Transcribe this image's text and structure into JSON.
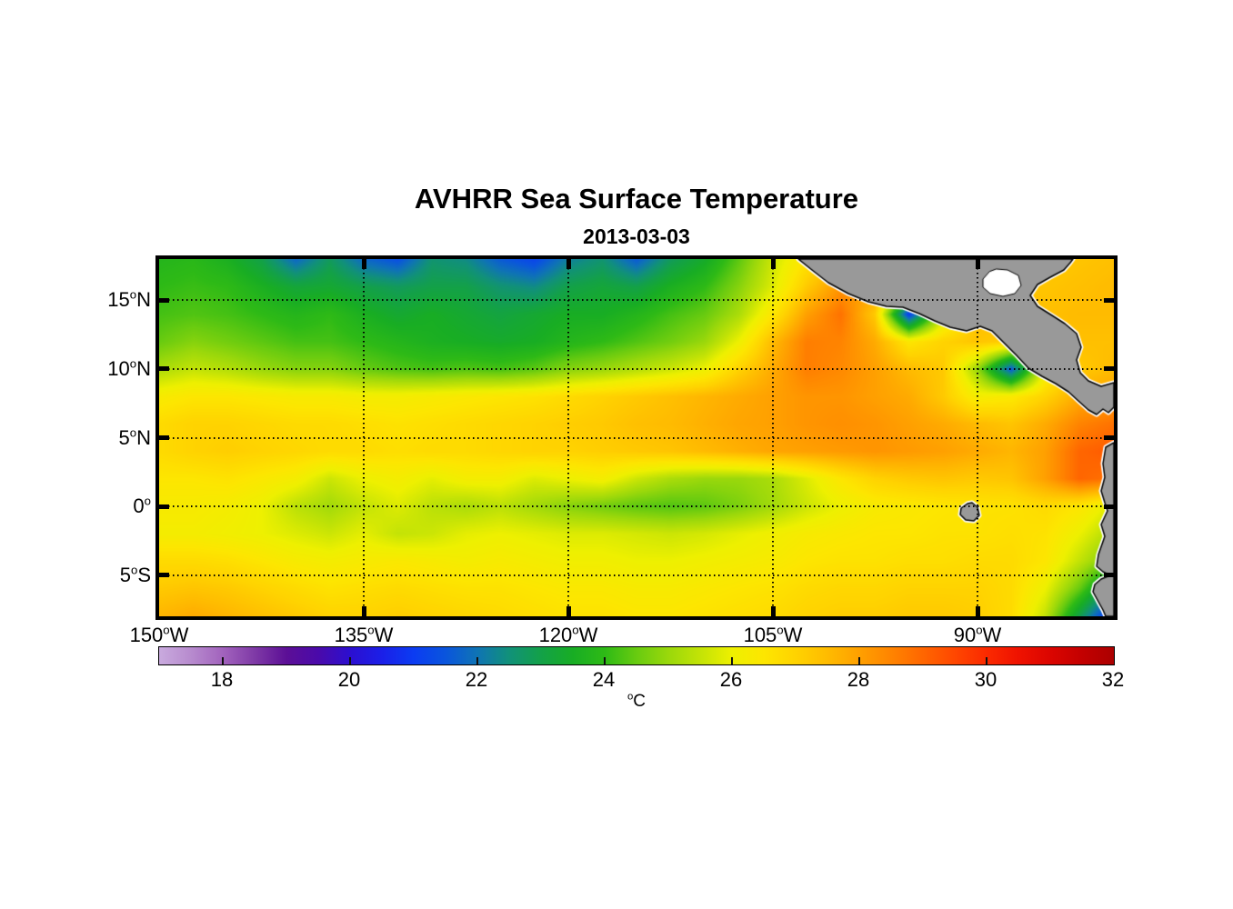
{
  "chart_data": {
    "type": "heatmap",
    "title": "AVHRR Sea Surface Temperature",
    "subtitle": "2013-03-03",
    "deg_mark": "o",
    "lat_axis": {
      "range": [
        18,
        -8
      ],
      "ticks": [
        {
          "deg": 15,
          "num": "15",
          "hem": "N"
        },
        {
          "deg": 10,
          "num": "10",
          "hem": "N"
        },
        {
          "deg": 5,
          "num": "5",
          "hem": "N"
        },
        {
          "deg": 0,
          "num": "0",
          "hem": ""
        },
        {
          "deg": -5,
          "num": "5",
          "hem": "S"
        }
      ]
    },
    "lon_axis": {
      "range": [
        150,
        80
      ],
      "ticks": [
        {
          "deg": 150,
          "num": "150",
          "hem": "W"
        },
        {
          "deg": 135,
          "num": "135",
          "hem": "W"
        },
        {
          "deg": 120,
          "num": "120",
          "hem": "W"
        },
        {
          "deg": 105,
          "num": "105",
          "hem": "W"
        },
        {
          "deg": 90,
          "num": "90",
          "hem": "W"
        }
      ],
      "gridlines": [
        135,
        120,
        105,
        90
      ]
    },
    "colorbar": {
      "min": 17,
      "max": 32,
      "unit": "C",
      "labels": [
        18,
        20,
        22,
        24,
        26,
        28,
        30,
        32
      ],
      "tick_marks": [
        18,
        20,
        22,
        24,
        26,
        28,
        30
      ],
      "stops": [
        [
          17.0,
          "#c9aade"
        ],
        [
          17.5,
          "#b78bce"
        ],
        [
          18.0,
          "#a263bd"
        ],
        [
          18.5,
          "#7f3aa6"
        ],
        [
          19.0,
          "#5c0f96"
        ],
        [
          19.5,
          "#4a0aaa"
        ],
        [
          20.0,
          "#2c0fd0"
        ],
        [
          20.5,
          "#1b1fe8"
        ],
        [
          21.0,
          "#0b3cf2"
        ],
        [
          21.5,
          "#0a55dd"
        ],
        [
          22.0,
          "#0f74b4"
        ],
        [
          22.5,
          "#119179"
        ],
        [
          23.0,
          "#13a148"
        ],
        [
          23.5,
          "#18ad24"
        ],
        [
          24.0,
          "#2eba16"
        ],
        [
          24.5,
          "#68cb10"
        ],
        [
          25.0,
          "#9ad80b"
        ],
        [
          25.5,
          "#c3e306"
        ],
        [
          26.0,
          "#eef000"
        ],
        [
          26.5,
          "#fde600"
        ],
        [
          27.0,
          "#ffd300"
        ],
        [
          27.5,
          "#ffbb00"
        ],
        [
          28.0,
          "#ffa000"
        ],
        [
          28.5,
          "#ff8400"
        ],
        [
          29.0,
          "#ff6600"
        ],
        [
          29.5,
          "#ff4700"
        ],
        [
          30.0,
          "#fb2a00"
        ],
        [
          30.5,
          "#ef1200"
        ],
        [
          31.0,
          "#db0500"
        ],
        [
          31.5,
          "#c30000"
        ],
        [
          32.0,
          "#ab0000"
        ]
      ]
    },
    "sst_grid": {
      "lon_start": 150,
      "lon_step": 2.5,
      "lat_start": 18,
      "lat_step": 2,
      "values": [
        [
          23.8,
          23.9,
          23.6,
          23.0,
          21.8,
          22.8,
          21.8,
          21.4,
          22.6,
          22.4,
          21.6,
          21.2,
          22.2,
          22.6,
          21.6,
          22.8,
          23.4,
          24.4,
          25.6,
          26.6,
          27.2,
          27.5,
          27.5,
          27.5,
          27.4,
          27.2,
          27.2,
          27.3,
          27.4
        ],
        [
          24.0,
          24.1,
          24.0,
          23.6,
          23.2,
          23.3,
          23.0,
          22.8,
          23.0,
          23.0,
          22.6,
          22.4,
          23.0,
          23.2,
          23.0,
          23.6,
          24.0,
          24.8,
          25.8,
          27.2,
          28.2,
          28.0,
          26.0,
          27.2,
          27.3,
          27.3,
          27.3,
          27.4,
          27.5
        ],
        [
          24.2,
          24.3,
          24.2,
          24.0,
          23.8,
          24.0,
          23.6,
          23.3,
          23.5,
          23.3,
          23.1,
          23.3,
          23.5,
          23.5,
          23.8,
          24.2,
          24.5,
          25.2,
          26.5,
          28.0,
          28.8,
          27.2,
          21.0,
          25.5,
          27.4,
          27.5,
          27.4,
          27.5,
          27.5
        ],
        [
          24.5,
          24.8,
          24.6,
          24.4,
          24.2,
          24.2,
          24.0,
          23.8,
          23.6,
          23.5,
          23.4,
          23.5,
          23.8,
          24.0,
          24.3,
          24.6,
          25.0,
          26.0,
          27.5,
          28.6,
          28.5,
          27.8,
          26.5,
          27.0,
          27.3,
          27.1,
          27.3,
          27.4,
          27.4
        ],
        [
          25.2,
          25.5,
          25.3,
          25.0,
          24.8,
          24.8,
          24.5,
          24.3,
          24.2,
          24.3,
          24.2,
          24.4,
          24.8,
          25.0,
          25.3,
          25.6,
          26.0,
          27.0,
          27.8,
          28.6,
          28.4,
          28.0,
          27.5,
          27.2,
          25.0,
          21.5,
          26.0,
          27.2,
          27.5
        ],
        [
          26.3,
          26.5,
          26.5,
          26.4,
          26.3,
          26.3,
          26.2,
          26.2,
          26.3,
          26.4,
          26.5,
          26.6,
          26.8,
          27.0,
          27.2,
          27.4,
          27.6,
          27.8,
          28.0,
          28.2,
          28.2,
          28.0,
          27.8,
          27.2,
          26.2,
          26.4,
          27.0,
          27.8,
          28.0
        ],
        [
          26.8,
          27.0,
          27.0,
          26.9,
          26.8,
          26.8,
          26.7,
          26.6,
          26.7,
          26.8,
          26.9,
          27.0,
          27.1,
          27.2,
          27.4,
          27.5,
          27.7,
          27.9,
          28.0,
          28.2,
          28.3,
          28.2,
          28.0,
          27.8,
          27.5,
          27.3,
          27.8,
          28.5,
          28.8
        ],
        [
          26.8,
          27.0,
          27.1,
          27.0,
          26.9,
          26.8,
          26.8,
          26.7,
          26.8,
          26.8,
          26.9,
          27.0,
          27.0,
          27.1,
          27.2,
          27.3,
          27.5,
          27.7,
          27.9,
          28.0,
          28.1,
          28.2,
          28.1,
          28.0,
          27.8,
          27.6,
          28.0,
          29.0,
          29.2
        ],
        [
          26.5,
          26.5,
          26.6,
          26.4,
          26.2,
          25.6,
          26.0,
          26.2,
          25.9,
          26.2,
          26.2,
          25.8,
          26.0,
          26.2,
          25.6,
          25.2,
          25.0,
          25.0,
          25.2,
          25.8,
          26.5,
          27.0,
          27.2,
          27.3,
          27.2,
          27.3,
          28.0,
          29.0,
          28.8
        ],
        [
          26.3,
          26.3,
          26.2,
          26.0,
          25.4,
          25.1,
          25.5,
          25.8,
          25.4,
          25.2,
          25.4,
          25.1,
          24.8,
          24.6,
          24.4,
          24.3,
          24.4,
          24.7,
          25.1,
          25.6,
          26.0,
          26.3,
          26.4,
          26.5,
          26.6,
          26.6,
          26.8,
          26.5,
          25.8
        ],
        [
          26.2,
          26.2,
          26.1,
          26.0,
          25.8,
          25.6,
          25.9,
          25.5,
          25.6,
          25.9,
          26.0,
          25.9,
          25.8,
          25.8,
          25.7,
          25.6,
          25.7,
          25.9,
          26.1,
          26.3,
          26.4,
          26.5,
          26.5,
          26.6,
          26.6,
          26.7,
          26.6,
          26.0,
          25.2
        ],
        [
          26.8,
          26.8,
          26.7,
          26.5,
          26.3,
          26.2,
          26.3,
          26.4,
          26.3,
          26.2,
          26.3,
          26.2,
          26.1,
          26.1,
          26.0,
          26.0,
          26.1,
          26.2,
          26.3,
          26.5,
          26.6,
          26.6,
          26.7,
          26.7,
          26.8,
          26.8,
          26.5,
          25.5,
          24.5
        ],
        [
          27.2,
          27.3,
          27.2,
          27.0,
          26.8,
          26.6,
          26.7,
          26.8,
          26.7,
          26.6,
          26.6,
          26.5,
          26.4,
          26.4,
          26.3,
          26.3,
          26.4,
          26.5,
          26.6,
          26.8,
          26.9,
          26.9,
          27.0,
          27.0,
          27.0,
          26.8,
          26.0,
          24.5,
          22.5
        ],
        [
          27.6,
          27.8,
          27.6,
          27.4,
          27.2,
          27.0,
          27.0,
          27.1,
          27.0,
          26.9,
          26.8,
          26.7,
          26.6,
          26.6,
          26.5,
          26.5,
          26.6,
          26.7,
          26.8,
          27.0,
          27.1,
          27.1,
          27.2,
          27.2,
          27.1,
          26.8,
          25.5,
          23.0,
          20.5
        ]
      ]
    },
    "land": {
      "fill": "#999999",
      "coast": "#000000",
      "casing": "#ffffff",
      "polygons": [
        {
          "name": "central-america",
          "pts": [
            [
              703,
              0
            ],
            [
              718,
              12
            ],
            [
              736,
              26
            ],
            [
              758,
              38
            ],
            [
              780,
              47
            ],
            [
              800,
              52
            ],
            [
              818,
              53
            ],
            [
              836,
              60
            ],
            [
              853,
              68
            ],
            [
              870,
              75
            ],
            [
              888,
              79
            ],
            [
              903,
              74
            ],
            [
              916,
              79
            ],
            [
              929,
              92
            ],
            [
              943,
              106
            ],
            [
              956,
              120
            ],
            [
              971,
              129
            ],
            [
              986,
              137
            ],
            [
              1000,
              146
            ],
            [
              1012,
              157
            ],
            [
              1022,
              166
            ],
            [
              1031,
              171
            ],
            [
              1038,
              165
            ],
            [
              1044,
              169
            ],
            [
              1050,
              163
            ],
            [
              1050,
              136
            ],
            [
              1036,
              140
            ],
            [
              1022,
              134
            ],
            [
              1013,
              125
            ],
            [
              1009,
              111
            ],
            [
              1014,
              97
            ],
            [
              1009,
              82
            ],
            [
              996,
              71
            ],
            [
              982,
              62
            ],
            [
              966,
              52
            ],
            [
              958,
              40
            ],
            [
              966,
              28
            ],
            [
              980,
              20
            ],
            [
              995,
              12
            ],
            [
              1002,
              4
            ],
            [
              1005,
              0
            ]
          ]
        },
        {
          "name": "south-america",
          "pts": [
            [
              1050,
              202
            ],
            [
              1041,
              207
            ],
            [
              1038,
              225
            ],
            [
              1040,
              240
            ],
            [
              1036,
              255
            ],
            [
              1040,
              268
            ],
            [
              1043,
              277
            ],
            [
              1036,
              292
            ],
            [
              1040,
              305
            ],
            [
              1033,
              325
            ],
            [
              1031,
              338
            ],
            [
              1038,
              344
            ],
            [
              1046,
              348
            ],
            [
              1036,
              352
            ],
            [
              1029,
              358
            ],
            [
              1027,
              366
            ],
            [
              1033,
              377
            ],
            [
              1038,
              386
            ],
            [
              1041,
              393
            ],
            [
              1050,
              393
            ]
          ]
        },
        {
          "name": "galapagos-islands",
          "pts": [
            [
              889,
              269
            ],
            [
              882,
              274
            ],
            [
              881,
              281
            ],
            [
              887,
              287
            ],
            [
              896,
              288
            ],
            [
              902,
              282
            ],
            [
              900,
              273
            ],
            [
              894,
              268
            ]
          ]
        }
      ],
      "water_bodies": [
        {
          "name": "bay-of-campeche",
          "pts": [
            [
              913,
              14
            ],
            [
              906,
              22
            ],
            [
              906,
              31
            ],
            [
              914,
              38
            ],
            [
              928,
              41
            ],
            [
              941,
              38
            ],
            [
              948,
              29
            ],
            [
              945,
              18
            ],
            [
              933,
              12
            ],
            [
              921,
              11
            ]
          ]
        }
      ]
    }
  }
}
